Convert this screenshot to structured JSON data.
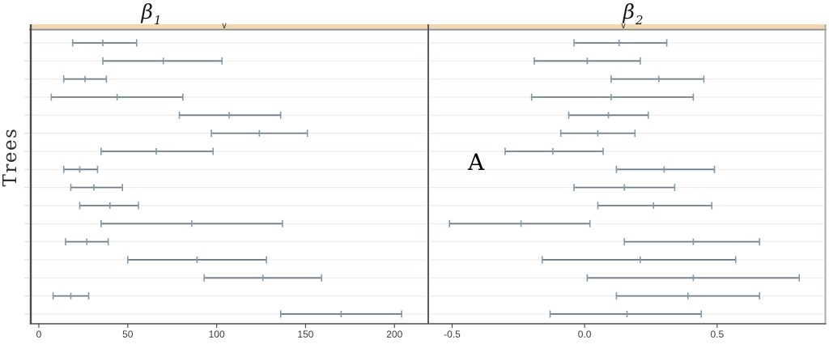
{
  "figure": {
    "ylabel": "Trees",
    "annotation": "A",
    "markers": [
      {
        "glyph": "∨"
      },
      {
        "glyph": "∨"
      }
    ]
  },
  "chart_data": [
    {
      "type": "pointrange",
      "panel": "left",
      "title": "β1",
      "title_base": "β",
      "title_sub": "1",
      "ylabel": "Trees",
      "xlim": [
        -5,
        219
      ],
      "xticks": [
        0,
        50,
        100,
        150,
        200
      ],
      "xticklabels": [
        "0",
        "50",
        "100",
        "150",
        "200"
      ],
      "grid": true,
      "legend": "none",
      "rows": [
        [
          19,
          36,
          55
        ],
        [
          36,
          70,
          103
        ],
        [
          14,
          26,
          38
        ],
        [
          7,
          44,
          81
        ],
        [
          79,
          107,
          136
        ],
        [
          97,
          124,
          151
        ],
        [
          35,
          66,
          98
        ],
        [
          14,
          23,
          33
        ],
        [
          18,
          31,
          47
        ],
        [
          23,
          40,
          56
        ],
        [
          35,
          86,
          137
        ],
        [
          15,
          27,
          39
        ],
        [
          50,
          89,
          128
        ],
        [
          93,
          126,
          159
        ],
        [
          8,
          18,
          28
        ],
        [
          136,
          170,
          204
        ]
      ]
    },
    {
      "type": "pointrange",
      "panel": "right",
      "title": "β2",
      "title_base": "β",
      "title_sub": "2",
      "annotation": "A",
      "xlim": [
        -0.59,
        0.91
      ],
      "xticks": [
        -0.5,
        0.0,
        0.5
      ],
      "xticklabels": [
        "-0.5",
        "0.0",
        "0.5"
      ],
      "grid": true,
      "legend": "none",
      "rows": [
        [
          -0.04,
          0.13,
          0.31
        ],
        [
          -0.19,
          0.01,
          0.21
        ],
        [
          0.1,
          0.28,
          0.45
        ],
        [
          -0.2,
          0.1,
          0.41
        ],
        [
          -0.06,
          0.09,
          0.24
        ],
        [
          -0.09,
          0.05,
          0.19
        ],
        [
          -0.3,
          -0.12,
          0.07
        ],
        [
          0.12,
          0.3,
          0.49
        ],
        [
          -0.04,
          0.15,
          0.34
        ],
        [
          0.05,
          0.26,
          0.48
        ],
        [
          -0.51,
          -0.24,
          0.02
        ],
        [
          0.15,
          0.41,
          0.66
        ],
        [
          -0.16,
          0.21,
          0.57
        ],
        [
          0.01,
          0.41,
          0.81
        ],
        [
          0.12,
          0.39,
          0.66
        ],
        [
          -0.13,
          0.16,
          0.44
        ]
      ]
    }
  ],
  "colors": {
    "interval_line": "#707c85",
    "interval_caps": "#7b9aad",
    "gridline": "#f2eaea",
    "axis": "#4c4c4c",
    "divider": "#5a5a5a",
    "right_border": "#a8acaf",
    "top_band": "#f3d7ae",
    "top_border": "#8a8a8a",
    "y_tick": "#d9d9d9",
    "tick_label": "#3b3b3b",
    "background": "#ffffff"
  }
}
